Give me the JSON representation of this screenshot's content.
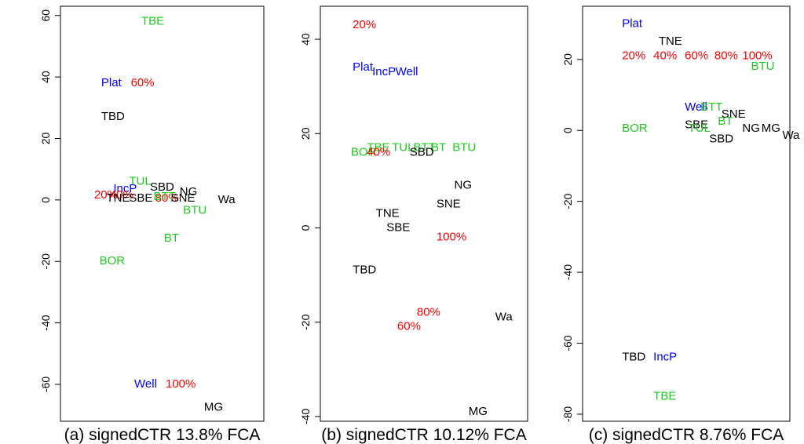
{
  "colors": {
    "black": "#000000",
    "red": "#ff0000",
    "green": "#1fc81f",
    "blue": "#0000ff"
  },
  "chart_data": [
    {
      "type": "scatter",
      "title": "(a) signedCTR 13.8% FCA",
      "ylim": [
        -72,
        63
      ],
      "yticks": [
        60,
        40,
        20,
        0,
        -20,
        -40,
        -60
      ],
      "xlim": [
        0,
        1
      ],
      "grid": false,
      "points": [
        {
          "label": "TBE",
          "x": 0.36,
          "y": 58,
          "color": "green"
        },
        {
          "label": "Plat",
          "x": 0.13,
          "y": 38,
          "color": "blue"
        },
        {
          "label": "60%",
          "x": 0.3,
          "y": 38,
          "color": "red"
        },
        {
          "label": "TBD",
          "x": 0.13,
          "y": 27,
          "color": "black"
        },
        {
          "label": "TUL",
          "x": 0.29,
          "y": 6,
          "color": "green"
        },
        {
          "label": "SBD",
          "x": 0.41,
          "y": 4,
          "color": "black"
        },
        {
          "label": "IncP",
          "x": 0.2,
          "y": 3.5,
          "color": "blue"
        },
        {
          "label": "NG",
          "x": 0.58,
          "y": 2.5,
          "color": "black"
        },
        {
          "label": "20%",
          "x": 0.09,
          "y": 1.5,
          "color": "red"
        },
        {
          "label": "40%",
          "x": 0.18,
          "y": 1.5,
          "color": "red"
        },
        {
          "label": "80%",
          "x": 0.44,
          "y": 0.5,
          "color": "red"
        },
        {
          "label": "BTT",
          "x": 0.43,
          "y": 1,
          "color": "green"
        },
        {
          "label": "TNE",
          "x": 0.16,
          "y": 0.5,
          "color": "black"
        },
        {
          "label": "SBE",
          "x": 0.29,
          "y": 0.5,
          "color": "black"
        },
        {
          "label": "SNE",
          "x": 0.53,
          "y": 0.5,
          "color": "black"
        },
        {
          "label": "Wa",
          "x": 0.8,
          "y": 0,
          "color": "black"
        },
        {
          "label": "BTU",
          "x": 0.6,
          "y": -3.5,
          "color": "green"
        },
        {
          "label": "BT",
          "x": 0.49,
          "y": -12.5,
          "color": "green"
        },
        {
          "label": "BOR",
          "x": 0.12,
          "y": -20,
          "color": "green"
        },
        {
          "label": "Well",
          "x": 0.32,
          "y": -60,
          "color": "blue"
        },
        {
          "label": "100%",
          "x": 0.5,
          "y": -60,
          "color": "red"
        },
        {
          "label": "MG",
          "x": 0.72,
          "y": -67.5,
          "color": "black"
        }
      ]
    },
    {
      "type": "scatter",
      "title": "(b) signedCTR 10.12% FCA",
      "ylim": [
        -41,
        47
      ],
      "yticks": [
        40,
        20,
        0,
        -20,
        -40
      ],
      "xlim": [
        0,
        1
      ],
      "grid": false,
      "points": [
        {
          "label": "20%",
          "x": 0.08,
          "y": 43,
          "color": "red"
        },
        {
          "label": "Plat",
          "x": 0.08,
          "y": 34,
          "color": "blue"
        },
        {
          "label": "IncP",
          "x": 0.19,
          "y": 33,
          "color": "blue"
        },
        {
          "label": "Well",
          "x": 0.32,
          "y": 33,
          "color": "blue"
        },
        {
          "label": "TBE",
          "x": 0.16,
          "y": 17,
          "color": "green"
        },
        {
          "label": "TUL",
          "x": 0.3,
          "y": 17,
          "color": "green"
        },
        {
          "label": "BTT",
          "x": 0.42,
          "y": 17,
          "color": "green"
        },
        {
          "label": "BT",
          "x": 0.52,
          "y": 17,
          "color": "green"
        },
        {
          "label": "BTU",
          "x": 0.64,
          "y": 17,
          "color": "green"
        },
        {
          "label": "BOR",
          "x": 0.07,
          "y": 16,
          "color": "green"
        },
        {
          "label": "40%",
          "x": 0.16,
          "y": 16,
          "color": "red"
        },
        {
          "label": "SBD",
          "x": 0.4,
          "y": 16,
          "color": "black"
        },
        {
          "label": "NG",
          "x": 0.65,
          "y": 9,
          "color": "black"
        },
        {
          "label": "SNE",
          "x": 0.55,
          "y": 5,
          "color": "black"
        },
        {
          "label": "TNE",
          "x": 0.21,
          "y": 3,
          "color": "black"
        },
        {
          "label": "SBE",
          "x": 0.27,
          "y": 0,
          "color": "black"
        },
        {
          "label": "100%",
          "x": 0.55,
          "y": -2,
          "color": "red"
        },
        {
          "label": "TBD",
          "x": 0.08,
          "y": -9,
          "color": "black"
        },
        {
          "label": "80%",
          "x": 0.44,
          "y": -18,
          "color": "red"
        },
        {
          "label": "Wa",
          "x": 0.88,
          "y": -19,
          "color": "black"
        },
        {
          "label": "60%",
          "x": 0.33,
          "y": -21,
          "color": "red"
        },
        {
          "label": "MG",
          "x": 0.73,
          "y": -39,
          "color": "black"
        }
      ]
    },
    {
      "type": "scatter",
      "title": "(c) signedCTR 8.76% FCA",
      "ylim": [
        -82,
        35
      ],
      "yticks": [
        20,
        0,
        -20,
        -40,
        -60,
        -80
      ],
      "xlim": [
        0,
        1
      ],
      "grid": false,
      "points": [
        {
          "label": "Plat",
          "x": 0.1,
          "y": 30,
          "color": "blue"
        },
        {
          "label": "TNE",
          "x": 0.31,
          "y": 25,
          "color": "black"
        },
        {
          "label": "20%",
          "x": 0.1,
          "y": 21,
          "color": "red"
        },
        {
          "label": "40%",
          "x": 0.28,
          "y": 21,
          "color": "red"
        },
        {
          "label": "60%",
          "x": 0.46,
          "y": 21,
          "color": "red"
        },
        {
          "label": "80%",
          "x": 0.63,
          "y": 21,
          "color": "red"
        },
        {
          "label": "100%",
          "x": 0.79,
          "y": 21,
          "color": "red"
        },
        {
          "label": "BTU",
          "x": 0.84,
          "y": 18,
          "color": "green"
        },
        {
          "label": "Well",
          "x": 0.46,
          "y": 6.5,
          "color": "blue"
        },
        {
          "label": "BTT",
          "x": 0.55,
          "y": 6.5,
          "color": "green"
        },
        {
          "label": "SNE",
          "x": 0.67,
          "y": 4.5,
          "color": "black"
        },
        {
          "label": "BT",
          "x": 0.65,
          "y": 2.5,
          "color": "green"
        },
        {
          "label": "SBE",
          "x": 0.46,
          "y": 1.5,
          "color": "black"
        },
        {
          "label": "BOR",
          "x": 0.1,
          "y": 0.5,
          "color": "green"
        },
        {
          "label": "TUL",
          "x": 0.48,
          "y": 0.5,
          "color": "green"
        },
        {
          "label": "NG",
          "x": 0.79,
          "y": 0.5,
          "color": "black"
        },
        {
          "label": "MG",
          "x": 0.9,
          "y": 0.5,
          "color": "black"
        },
        {
          "label": "Wa",
          "x": 1.02,
          "y": -1.5,
          "color": "black"
        },
        {
          "label": "SBD",
          "x": 0.6,
          "y": -2.5,
          "color": "black"
        },
        {
          "label": "TBD",
          "x": 0.1,
          "y": -64,
          "color": "black"
        },
        {
          "label": "IncP",
          "x": 0.28,
          "y": -64,
          "color": "blue"
        },
        {
          "label": "TBE",
          "x": 0.28,
          "y": -75,
          "color": "green"
        }
      ]
    }
  ]
}
